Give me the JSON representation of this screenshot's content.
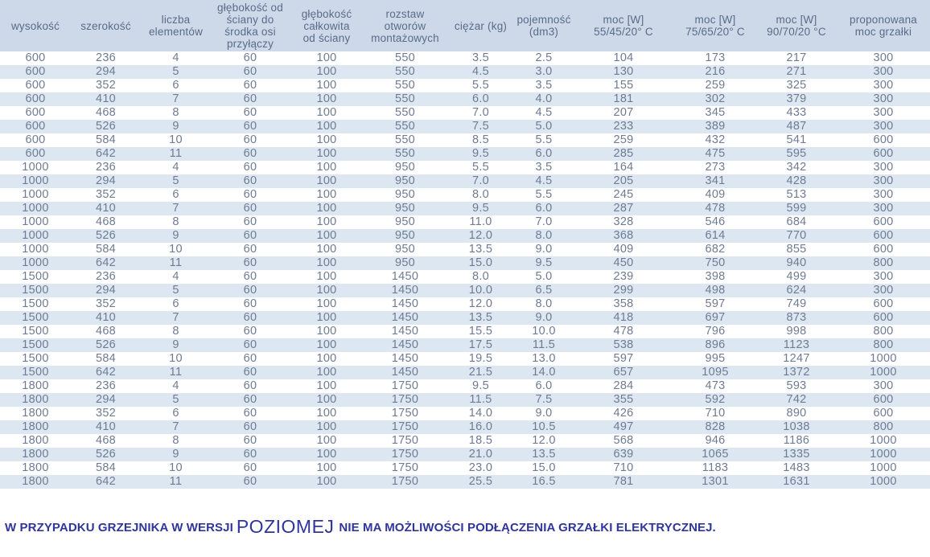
{
  "table": {
    "columns": [
      {
        "label": "wysokość"
      },
      {
        "label": "szerokość"
      },
      {
        "label": "liczba\nelementów"
      },
      {
        "label": "głębokość od\nściany do\nśrodka osi\nprzyłączy"
      },
      {
        "label": "głębokość\ncałkowita\nod ściany"
      },
      {
        "label": "rozstaw\notworów\nmontażowych"
      },
      {
        "label": "ciężar (kg)"
      },
      {
        "label": "pojemność\n(dm3)"
      },
      {
        "label": "moc [W]\n55/45/20° C"
      },
      {
        "label": "moc [W]\n75/65/20° C"
      },
      {
        "label": "moc [W]\n90/70/20 °C"
      },
      {
        "label": "proponowana\nmoc grzałki"
      }
    ],
    "rows": [
      [
        "600",
        "236",
        "4",
        "60",
        "100",
        "550",
        "3.5",
        "2.5",
        "104",
        "173",
        "217",
        "300"
      ],
      [
        "600",
        "294",
        "5",
        "60",
        "100",
        "550",
        "4.5",
        "3.0",
        "130",
        "216",
        "271",
        "300"
      ],
      [
        "600",
        "352",
        "6",
        "60",
        "100",
        "550",
        "5.5",
        "3.5",
        "155",
        "259",
        "325",
        "300"
      ],
      [
        "600",
        "410",
        "7",
        "60",
        "100",
        "550",
        "6.0",
        "4.0",
        "181",
        "302",
        "379",
        "300"
      ],
      [
        "600",
        "468",
        "8",
        "60",
        "100",
        "550",
        "7.0",
        "4.5",
        "207",
        "345",
        "433",
        "300"
      ],
      [
        "600",
        "526",
        "9",
        "60",
        "100",
        "550",
        "7.5",
        "5.0",
        "233",
        "389",
        "487",
        "300"
      ],
      [
        "600",
        "584",
        "10",
        "60",
        "100",
        "550",
        "8.5",
        "5.5",
        "259",
        "432",
        "541",
        "600"
      ],
      [
        "600",
        "642",
        "11",
        "60",
        "100",
        "550",
        "9.5",
        "6.0",
        "285",
        "475",
        "595",
        "600"
      ],
      [
        "1000",
        "236",
        "4",
        "60",
        "100",
        "950",
        "5.5",
        "3.5",
        "164",
        "273",
        "342",
        "300"
      ],
      [
        "1000",
        "294",
        "5",
        "60",
        "100",
        "950",
        "7.0",
        "4.5",
        "205",
        "341",
        "428",
        "300"
      ],
      [
        "1000",
        "352",
        "6",
        "60",
        "100",
        "950",
        "8.0",
        "5.5",
        "245",
        "409",
        "513",
        "300"
      ],
      [
        "1000",
        "410",
        "7",
        "60",
        "100",
        "950",
        "9.5",
        "6.0",
        "287",
        "478",
        "599",
        "300"
      ],
      [
        "1000",
        "468",
        "8",
        "60",
        "100",
        "950",
        "11.0",
        "7.0",
        "328",
        "546",
        "684",
        "600"
      ],
      [
        "1000",
        "526",
        "9",
        "60",
        "100",
        "950",
        "12.0",
        "8.0",
        "368",
        "614",
        "770",
        "600"
      ],
      [
        "1000",
        "584",
        "10",
        "60",
        "100",
        "950",
        "13.5",
        "9.0",
        "409",
        "682",
        "855",
        "600"
      ],
      [
        "1000",
        "642",
        "11",
        "60",
        "100",
        "950",
        "15.0",
        "9.5",
        "450",
        "750",
        "940",
        "800"
      ],
      [
        "1500",
        "236",
        "4",
        "60",
        "100",
        "1450",
        "8.0",
        "5.0",
        "239",
        "398",
        "499",
        "300"
      ],
      [
        "1500",
        "294",
        "5",
        "60",
        "100",
        "1450",
        "10.0",
        "6.5",
        "299",
        "498",
        "624",
        "300"
      ],
      [
        "1500",
        "352",
        "6",
        "60",
        "100",
        "1450",
        "12.0",
        "8.0",
        "358",
        "597",
        "749",
        "600"
      ],
      [
        "1500",
        "410",
        "7",
        "60",
        "100",
        "1450",
        "13.5",
        "9.0",
        "418",
        "697",
        "873",
        "600"
      ],
      [
        "1500",
        "468",
        "8",
        "60",
        "100",
        "1450",
        "15.5",
        "10.0",
        "478",
        "796",
        "998",
        "800"
      ],
      [
        "1500",
        "526",
        "9",
        "60",
        "100",
        "1450",
        "17.5",
        "11.5",
        "538",
        "896",
        "1123",
        "800"
      ],
      [
        "1500",
        "584",
        "10",
        "60",
        "100",
        "1450",
        "19.5",
        "13.0",
        "597",
        "995",
        "1247",
        "1000"
      ],
      [
        "1500",
        "642",
        "11",
        "60",
        "100",
        "1450",
        "21.5",
        "14.0",
        "657",
        "1095",
        "1372",
        "1000"
      ],
      [
        "1800",
        "236",
        "4",
        "60",
        "100",
        "1750",
        "9.5",
        "6.0",
        "284",
        "473",
        "593",
        "300"
      ],
      [
        "1800",
        "294",
        "5",
        "60",
        "100",
        "1750",
        "11.5",
        "7.5",
        "355",
        "592",
        "742",
        "600"
      ],
      [
        "1800",
        "352",
        "6",
        "60",
        "100",
        "1750",
        "14.0",
        "9.0",
        "426",
        "710",
        "890",
        "600"
      ],
      [
        "1800",
        "410",
        "7",
        "60",
        "100",
        "1750",
        "16.0",
        "10.5",
        "497",
        "828",
        "1038",
        "800"
      ],
      [
        "1800",
        "468",
        "8",
        "60",
        "100",
        "1750",
        "18.5",
        "12.0",
        "568",
        "946",
        "1186",
        "1000"
      ],
      [
        "1800",
        "526",
        "9",
        "60",
        "100",
        "1750",
        "21.0",
        "13.5",
        "639",
        "1065",
        "1335",
        "1000"
      ],
      [
        "1800",
        "584",
        "10",
        "60",
        "100",
        "1750",
        "23.0",
        "15.0",
        "710",
        "1183",
        "1483",
        "1000"
      ],
      [
        "1800",
        "642",
        "11",
        "60",
        "100",
        "1750",
        "25.5",
        "16.5",
        "781",
        "1301",
        "1631",
        "1000"
      ]
    ]
  },
  "footnote": {
    "part1": "W PRZYPADKU GRZEJNIKA W WERSJI",
    "highlight": "POZIOMEJ",
    "part2": "NIE MA MOŻLIWOŚCI PODŁĄCZENIA GRZAŁKI ELEKTRYCZNEJ."
  },
  "colors": {
    "header_background": "#cdd9e9",
    "row_stripe": "#dde7f2",
    "header_text": "#5a6b88",
    "cell_text": "#6f7b92",
    "footnote_text": "#2f359b"
  }
}
